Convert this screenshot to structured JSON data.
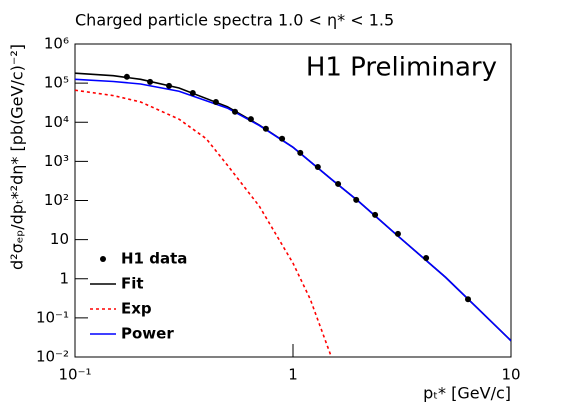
{
  "chart_data": {
    "type": "scatter",
    "title": "Charged particle spectra 1.0 < η* < 1.5",
    "x_label": "pₜ* [GeV/c]",
    "y_label": "d²σₑₚ/dpₜ*²dη* [pb(GeV/c)⁻²]",
    "annotation": "H1 Preliminary",
    "log_x": true,
    "log_y": true,
    "xlim": [
      0.1,
      10
    ],
    "ylim": [
      0.01,
      1000000
    ],
    "xticks": [
      {
        "value": 0.1,
        "label": "10⁻¹"
      },
      1,
      10
    ],
    "yticks": [
      {
        "value": 0.01,
        "label": "10⁻²"
      },
      {
        "value": 0.1,
        "label": "10⁻¹"
      },
      1,
      10,
      {
        "value": 100,
        "label": "10²"
      },
      {
        "value": 1000,
        "label": "10³"
      },
      {
        "value": 10000,
        "label": "10⁴"
      },
      {
        "value": 100000,
        "label": "10⁵"
      },
      {
        "value": 1000000,
        "label": "10⁶"
      }
    ],
    "legend": "lower left",
    "series": [
      {
        "name": "H1 data",
        "type": "scatter",
        "color": "#000000",
        "x": [
          0.173,
          0.221,
          0.27,
          0.347,
          0.443,
          0.542,
          0.641,
          0.751,
          0.891,
          1.08,
          1.3,
          1.61,
          1.95,
          2.38,
          3.03,
          4.08,
          6.35
        ],
        "values": [
          145000,
          108000,
          85000,
          56000,
          33000,
          18500,
          12000,
          6800,
          3800,
          1650,
          720,
          265,
          104,
          43,
          14,
          3.4,
          0.3
        ]
      },
      {
        "name": "Fit",
        "type": "line",
        "color": "#000000",
        "x": [
          0.1,
          0.15,
          0.2,
          0.3,
          0.5,
          0.7,
          1,
          1.5,
          2,
          3,
          5,
          7,
          10
        ],
        "values": [
          180000,
          155000,
          125000,
          75000,
          25000,
          8500,
          2300,
          350,
          95,
          13,
          1.1,
          0.18,
          0.026
        ]
      },
      {
        "name": "Exp",
        "type": "line",
        "dashed": true,
        "color": "#ff0000",
        "x": [
          0.1,
          0.15,
          0.2,
          0.3,
          0.4,
          0.5,
          0.7,
          1,
          1.2,
          1.5
        ],
        "values": [
          66000,
          48000,
          33000,
          12000,
          3800,
          800,
          72,
          2.5,
          0.3,
          0.01
        ]
      },
      {
        "name": "Power",
        "type": "line",
        "color": "#0000ff",
        "x": [
          0.1,
          0.15,
          0.2,
          0.3,
          0.5,
          0.7,
          1,
          1.5,
          2,
          3,
          5,
          7,
          10
        ],
        "values": [
          125000,
          110000,
          95000,
          62000,
          23000,
          8300,
          2290,
          350,
          95,
          13,
          1.1,
          0.18,
          0.026
        ]
      }
    ]
  }
}
